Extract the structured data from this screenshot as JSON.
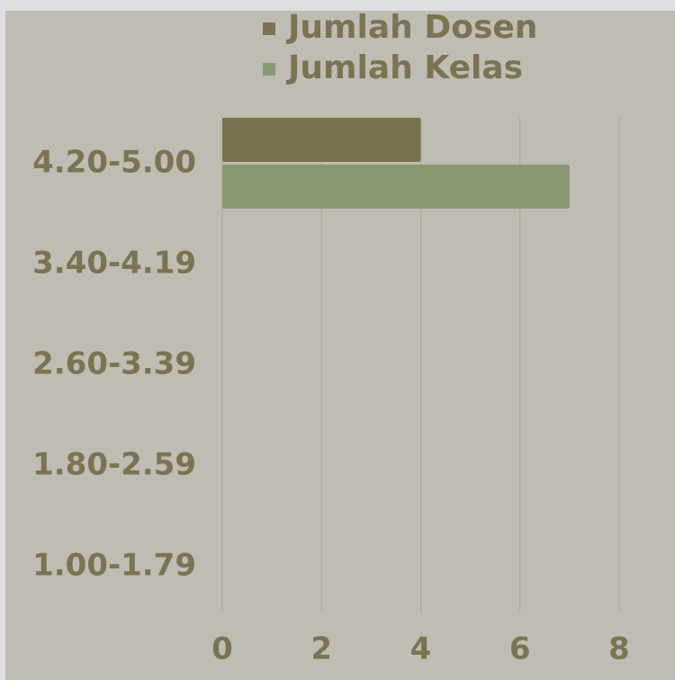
{
  "chart_data": {
    "type": "hbar",
    "categories": [
      "4.20-5.00",
      "3.40-4.19",
      "2.60-3.39",
      "1.80-2.59",
      "1.00-1.79"
    ],
    "series": [
      {
        "name": "Jumlah Dosen",
        "color": "#7b7350",
        "values": [
          4,
          0,
          0,
          0,
          0
        ]
      },
      {
        "name": "Jumlah Kelas",
        "color": "#8a9872",
        "values": [
          7,
          0,
          0,
          0,
          0
        ]
      }
    ],
    "xlim": [
      0,
      8
    ],
    "xticks": [
      0,
      2,
      4,
      6,
      8
    ],
    "grid": true,
    "legend": "top"
  }
}
